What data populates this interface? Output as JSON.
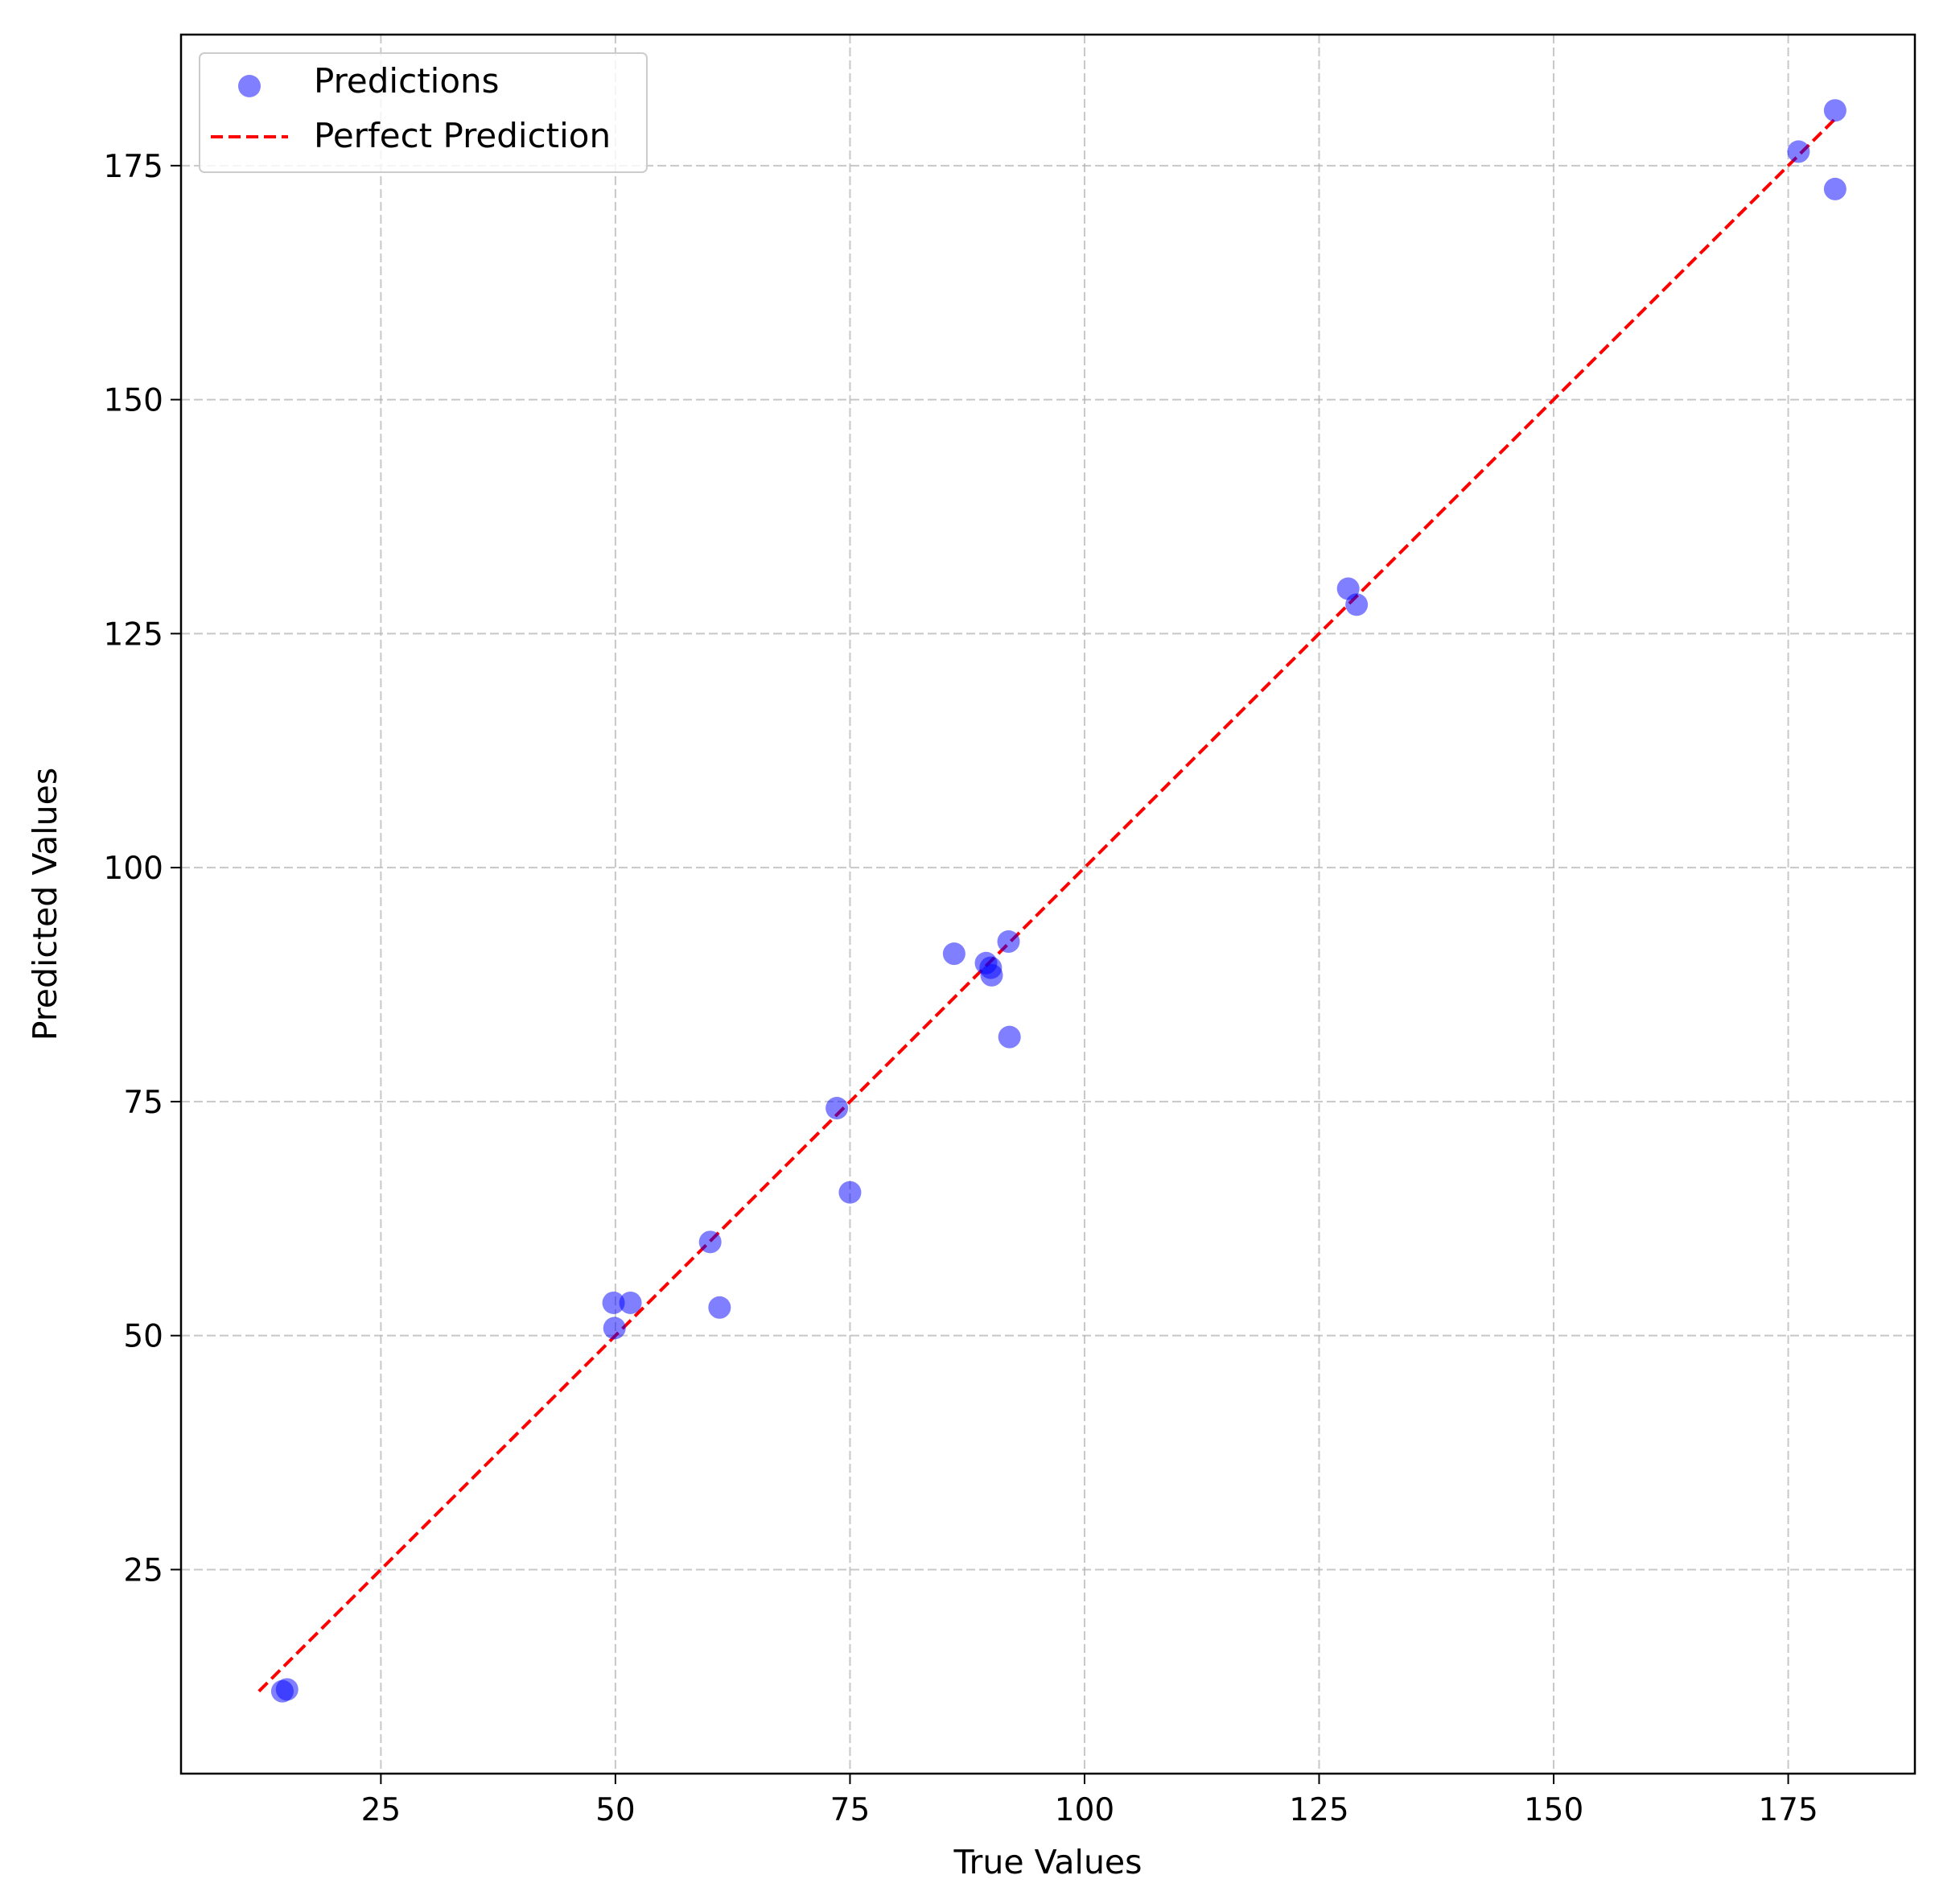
{
  "chart_data": {
    "type": "scatter",
    "title": "",
    "xlabel": "True Values",
    "ylabel": "Predicted Values",
    "xlim": [
      3.7,
      188.5
    ],
    "ylim": [
      3.2,
      189.0
    ],
    "xticks": [
      25,
      50,
      75,
      100,
      125,
      150,
      175
    ],
    "yticks": [
      25,
      50,
      75,
      100,
      125,
      150,
      175
    ],
    "grid": true,
    "legend_position": "top-left",
    "series": [
      {
        "name": "Predictions",
        "kind": "scatter",
        "color": "#0000ff",
        "alpha": 0.5,
        "points": [
          {
            "x": 14.5,
            "y": 12.0
          },
          {
            "x": 15.0,
            "y": 12.2
          },
          {
            "x": 49.8,
            "y": 53.5
          },
          {
            "x": 49.9,
            "y": 50.8
          },
          {
            "x": 51.6,
            "y": 53.5
          },
          {
            "x": 60.1,
            "y": 60.0
          },
          {
            "x": 61.1,
            "y": 53.0
          },
          {
            "x": 73.6,
            "y": 74.3
          },
          {
            "x": 75.0,
            "y": 65.3
          },
          {
            "x": 86.1,
            "y": 90.8
          },
          {
            "x": 89.5,
            "y": 89.8
          },
          {
            "x": 90.0,
            "y": 89.3
          },
          {
            "x": 90.1,
            "y": 88.5
          },
          {
            "x": 91.9,
            "y": 92.1
          },
          {
            "x": 92.0,
            "y": 81.9
          },
          {
            "x": 128.1,
            "y": 129.8
          },
          {
            "x": 129.0,
            "y": 128.1
          },
          {
            "x": 176.1,
            "y": 176.5
          },
          {
            "x": 180.0,
            "y": 180.9
          },
          {
            "x": 180.0,
            "y": 172.5
          }
        ]
      },
      {
        "name": "Perfect Prediction",
        "kind": "line",
        "color": "#ff0000",
        "dashed": true,
        "x": [
          12.0,
          180.0
        ],
        "y": [
          12.0,
          180.0
        ]
      }
    ]
  }
}
